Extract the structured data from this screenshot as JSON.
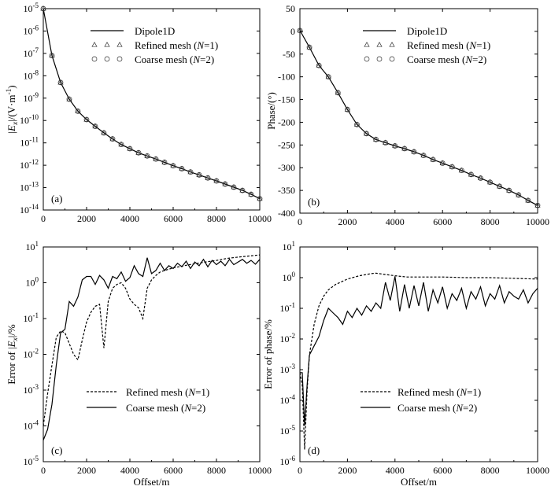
{
  "chart_data": [
    {
      "id": "a",
      "type": "line",
      "panel_label": "(a)",
      "yscale": "log",
      "xlabel": "",
      "ylabel": "|E_x|/(V·m^-1)",
      "xlim": [
        0,
        10000
      ],
      "ylim": [
        1e-14,
        1e-05
      ],
      "x_ticks": [
        0,
        2000,
        4000,
        6000,
        8000,
        10000
      ],
      "x_tick_labels": [
        "0",
        "2000",
        "4000",
        "6000",
        "8000",
        "10000"
      ],
      "y_tick_exponents": [
        -5,
        -6,
        -7,
        -8,
        -9,
        -10,
        -11,
        -12,
        -13,
        -14
      ],
      "legend_position": "top-right",
      "legend": [
        {
          "label": "Dipole1D",
          "style": "line"
        },
        {
          "label": "Refined mesh (N=1)",
          "style": "triangle"
        },
        {
          "label": "Coarse mesh (N=2)",
          "style": "circle"
        }
      ],
      "x": [
        0,
        400,
        800,
        1200,
        1600,
        2000,
        2400,
        2800,
        3200,
        3600,
        4000,
        4400,
        4800,
        5200,
        5600,
        6000,
        6400,
        6800,
        7200,
        7600,
        8000,
        8400,
        8800,
        9200,
        9600,
        10000
      ],
      "series": [
        {
          "name": "Dipole1D",
          "style": "line",
          "values": [
            1e-05,
            8e-08,
            5e-09,
            9e-10,
            2.6e-10,
            1.1e-10,
            5.5e-11,
            2.8e-11,
            1.5e-11,
            8.5e-12,
            5.5e-12,
            3.6e-12,
            2.6e-12,
            1.9e-12,
            1.35e-12,
            9.5e-13,
            7e-13,
            5e-13,
            3.7e-13,
            2.7e-13,
            2e-13,
            1.45e-13,
            1.05e-13,
            7.5e-14,
            5e-14,
            3.2e-14
          ]
        },
        {
          "name": "Refined mesh (N=1)",
          "style": "triangle",
          "values": [
            1e-05,
            8e-08,
            5e-09,
            9e-10,
            2.6e-10,
            1.1e-10,
            5.5e-11,
            2.8e-11,
            1.5e-11,
            8.5e-12,
            5.5e-12,
            3.6e-12,
            2.6e-12,
            1.9e-12,
            1.35e-12,
            9.5e-13,
            7e-13,
            5e-13,
            3.7e-13,
            2.7e-13,
            2e-13,
            1.45e-13,
            1.05e-13,
            7.5e-14,
            5e-14,
            3.2e-14
          ]
        },
        {
          "name": "Coarse mesh (N=2)",
          "style": "circle",
          "values": [
            1e-05,
            8e-08,
            5e-09,
            9e-10,
            2.6e-10,
            1.1e-10,
            5.5e-11,
            2.8e-11,
            1.5e-11,
            8.5e-12,
            5.5e-12,
            3.6e-12,
            2.6e-12,
            1.9e-12,
            1.35e-12,
            9.5e-13,
            7e-13,
            5e-13,
            3.7e-13,
            2.7e-13,
            2e-13,
            1.45e-13,
            1.05e-13,
            7.5e-14,
            5e-14,
            3.2e-14
          ]
        }
      ]
    },
    {
      "id": "b",
      "type": "line",
      "panel_label": "(b)",
      "yscale": "linear",
      "xlabel": "",
      "ylabel": "Phase/(°)",
      "xlim": [
        0,
        10000
      ],
      "ylim": [
        -400,
        50
      ],
      "x_ticks": [
        0,
        2000,
        4000,
        6000,
        8000,
        10000
      ],
      "x_tick_labels": [
        "0",
        "2000",
        "4000",
        "6000",
        "8000",
        "10000"
      ],
      "y_ticks": [
        50,
        0,
        -50,
        -100,
        -150,
        -200,
        -250,
        -300,
        -350,
        -400
      ],
      "y_tick_labels": [
        "50",
        "0",
        "-50",
        "-100",
        "-150",
        "-200",
        "-250",
        "-300",
        "-350",
        "-400"
      ],
      "legend_position": "top-right",
      "legend": [
        {
          "label": "Dipole1D",
          "style": "line"
        },
        {
          "label": "Refined mesh (N=1)",
          "style": "triangle"
        },
        {
          "label": "Coarse mesh (N=2)",
          "style": "circle"
        }
      ],
      "x": [
        0,
        400,
        800,
        1200,
        1600,
        2000,
        2400,
        2800,
        3200,
        3600,
        4000,
        4400,
        4800,
        5200,
        5600,
        6000,
        6400,
        6800,
        7200,
        7600,
        8000,
        8400,
        8800,
        9200,
        9600,
        10000
      ],
      "series": [
        {
          "name": "Dipole1D",
          "style": "line",
          "values": [
            2,
            -35,
            -75,
            -100,
            -135,
            -172,
            -205,
            -225,
            -238,
            -245,
            -252,
            -258,
            -265,
            -273,
            -282,
            -290,
            -298,
            -306,
            -315,
            -323,
            -332,
            -341,
            -350,
            -360,
            -372,
            -383
          ]
        },
        {
          "name": "Refined mesh (N=1)",
          "style": "triangle",
          "values": [
            2,
            -35,
            -75,
            -100,
            -135,
            -172,
            -205,
            -225,
            -238,
            -245,
            -252,
            -258,
            -265,
            -273,
            -282,
            -290,
            -298,
            -306,
            -315,
            -323,
            -332,
            -341,
            -350,
            -360,
            -372,
            -383
          ]
        },
        {
          "name": "Coarse mesh (N=2)",
          "style": "circle",
          "values": [
            2,
            -35,
            -75,
            -100,
            -135,
            -172,
            -205,
            -225,
            -238,
            -245,
            -252,
            -258,
            -265,
            -273,
            -282,
            -290,
            -298,
            -306,
            -315,
            -323,
            -332,
            -341,
            -350,
            -360,
            -372,
            -383
          ]
        }
      ]
    },
    {
      "id": "c",
      "type": "line",
      "panel_label": "(c)",
      "yscale": "log",
      "xlabel": "Offset/m",
      "ylabel": "Error of |E_x|/%",
      "xlim": [
        0,
        10000
      ],
      "ylim": [
        1e-05,
        10
      ],
      "x_ticks": [
        0,
        2000,
        4000,
        6000,
        8000,
        10000
      ],
      "x_tick_labels": [
        "0",
        "2000",
        "4000",
        "6000",
        "8000",
        "10000"
      ],
      "y_tick_exponents": [
        1,
        0,
        -1,
        -2,
        -3,
        -4,
        -5
      ],
      "legend_position": "bottom-center",
      "legend": [
        {
          "label": "Refined mesh (N=1)",
          "style": "dashed"
        },
        {
          "label": "Coarse mesh (N=2)",
          "style": "solid"
        }
      ],
      "series": [
        {
          "name": "Refined mesh (N=1)",
          "style": "dashed",
          "x": [
            0,
            200,
            400,
            600,
            800,
            1000,
            1200,
            1400,
            1600,
            1800,
            2000,
            2200,
            2400,
            2600,
            2800,
            3000,
            3200,
            3400,
            3600,
            3800,
            4000,
            4200,
            4400,
            4600,
            4800,
            5000,
            5200,
            5400,
            5600,
            6000,
            6500,
            7000,
            7500,
            8000,
            8500,
            9000,
            9500,
            10000
          ],
          "values": [
            0.0001,
            0.0008,
            0.005,
            0.03,
            0.045,
            0.04,
            0.02,
            0.01,
            0.007,
            0.025,
            0.08,
            0.15,
            0.22,
            0.25,
            0.015,
            0.3,
            0.7,
            0.9,
            1.0,
            0.7,
            0.35,
            0.25,
            0.2,
            0.1,
            0.7,
            1.2,
            1.6,
            2.0,
            2.2,
            2.6,
            3.0,
            3.4,
            3.8,
            4.2,
            4.8,
            5.2,
            5.6,
            6.0
          ]
        },
        {
          "name": "Coarse mesh (N=2)",
          "style": "solid",
          "x": [
            0,
            200,
            400,
            600,
            800,
            1000,
            1200,
            1400,
            1600,
            1800,
            2000,
            2200,
            2400,
            2600,
            2800,
            3000,
            3200,
            3400,
            3600,
            3800,
            4000,
            4200,
            4400,
            4600,
            4800,
            5000,
            5200,
            5400,
            5600,
            5800,
            6000,
            6200,
            6400,
            6600,
            6800,
            7000,
            7200,
            7400,
            7600,
            7800,
            8000,
            8200,
            8400,
            8600,
            8800,
            9000,
            9200,
            9400,
            9600,
            9800,
            10000
          ],
          "values": [
            4e-05,
            8e-05,
            0.0004,
            0.005,
            0.04,
            0.05,
            0.3,
            0.22,
            0.4,
            1.2,
            1.5,
            1.5,
            0.9,
            1.6,
            1.2,
            0.7,
            1.5,
            1.3,
            2.0,
            1.1,
            1.4,
            3.0,
            1.8,
            1.5,
            5.0,
            1.8,
            2.2,
            3.5,
            2.2,
            3.0,
            2.5,
            3.5,
            2.8,
            4.0,
            2.5,
            3.8,
            3.0,
            4.5,
            2.8,
            4.2,
            3.2,
            4.0,
            3.0,
            4.5,
            3.2,
            3.8,
            4.5,
            3.5,
            4.2,
            3.3,
            4.5
          ]
        }
      ]
    },
    {
      "id": "d",
      "type": "line",
      "panel_label": "(d)",
      "yscale": "log",
      "xlabel": "Offset/m",
      "ylabel": "Error of phase/%",
      "xlim": [
        0,
        10000
      ],
      "ylim": [
        1e-06,
        10
      ],
      "x_ticks": [
        0,
        2000,
        4000,
        6000,
        8000,
        10000
      ],
      "x_tick_labels": [
        "0",
        "2000",
        "4000",
        "6000",
        "8000",
        "10000"
      ],
      "y_tick_exponents": [
        1,
        0,
        -1,
        -2,
        -3,
        -4,
        -5,
        -6
      ],
      "legend_position": "bottom-center",
      "legend": [
        {
          "label": "Refined mesh (N=1)",
          "style": "dashed"
        },
        {
          "label": "Coarse mesh (N=2)",
          "style": "solid"
        }
      ],
      "series": [
        {
          "name": "Refined mesh (N=1)",
          "style": "dashed",
          "x": [
            0,
            100,
            200,
            300,
            400,
            600,
            800,
            1000,
            1200,
            1500,
            2000,
            2500,
            3000,
            3200,
            3500,
            4000,
            4500,
            5000,
            6000,
            7000,
            8000,
            9000,
            10000
          ],
          "values": [
            0.0008,
            0.0003,
            2.5e-06,
            0.0002,
            0.003,
            0.03,
            0.12,
            0.25,
            0.4,
            0.6,
            0.9,
            1.15,
            1.35,
            1.4,
            1.3,
            1.15,
            1.05,
            1.05,
            1.05,
            1.0,
            1.0,
            0.95,
            0.9
          ]
        },
        {
          "name": "Coarse mesh (N=2)",
          "style": "solid",
          "x": [
            0,
            100,
            200,
            300,
            400,
            600,
            800,
            1000,
            1200,
            1400,
            1600,
            1800,
            2000,
            2200,
            2400,
            2600,
            2800,
            3000,
            3200,
            3400,
            3600,
            3800,
            4000,
            4200,
            4400,
            4600,
            4800,
            5000,
            5200,
            5400,
            5600,
            5800,
            6000,
            6200,
            6400,
            6600,
            6800,
            7000,
            7200,
            7400,
            7600,
            7800,
            8000,
            8200,
            8400,
            8600,
            8800,
            9000,
            9200,
            9400,
            9600,
            9800,
            10000
          ],
          "values": [
            0.0008,
            0.0008,
            1.5e-05,
            0.0003,
            0.003,
            0.006,
            0.012,
            0.04,
            0.1,
            0.07,
            0.05,
            0.03,
            0.08,
            0.05,
            0.1,
            0.06,
            0.12,
            0.08,
            0.15,
            0.1,
            0.7,
            0.18,
            1.1,
            0.08,
            0.6,
            0.1,
            0.55,
            0.12,
            0.7,
            0.08,
            0.4,
            0.15,
            0.5,
            0.1,
            0.3,
            0.18,
            0.45,
            0.1,
            0.35,
            0.2,
            0.5,
            0.12,
            0.3,
            0.2,
            0.55,
            0.15,
            0.35,
            0.25,
            0.2,
            0.4,
            0.15,
            0.3,
            0.45
          ]
        }
      ]
    }
  ]
}
